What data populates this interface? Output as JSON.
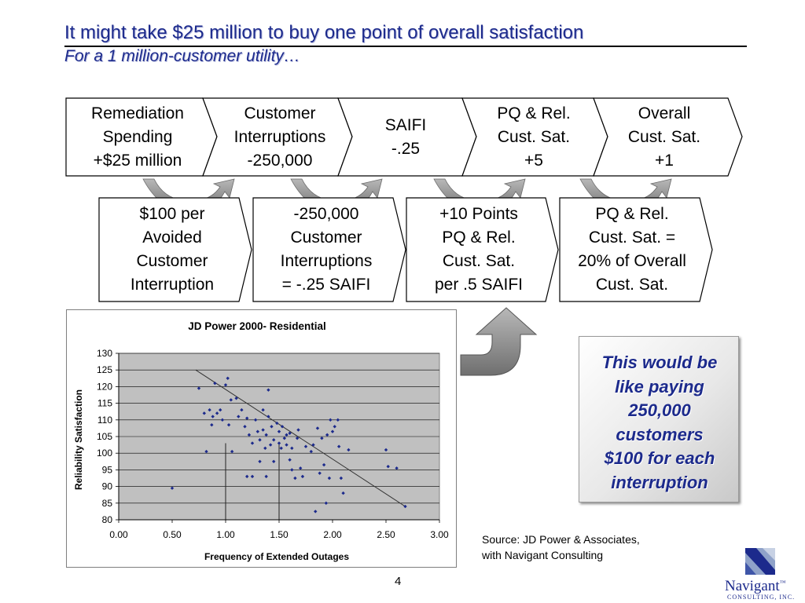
{
  "slide": {
    "title": "It might take $25 million to buy one point of overall satisfaction",
    "subtitle": "For a 1 million-customer utility…",
    "page_number": "4"
  },
  "chain": [
    {
      "lines": [
        "Remediation",
        "Spending",
        "+$25 million"
      ]
    },
    {
      "lines": [
        "Customer",
        "Interruptions",
        "-250,000"
      ]
    },
    {
      "lines": [
        "SAIFI",
        "-.25"
      ]
    },
    {
      "lines": [
        "PQ & Rel.",
        "Cust. Sat.",
        "+5"
      ]
    },
    {
      "lines": [
        "Overall",
        "Cust. Sat.",
        "+1"
      ]
    }
  ],
  "assumptions": [
    {
      "lines": [
        "$100 per",
        "Avoided",
        "Customer",
        "Interruption"
      ]
    },
    {
      "lines": [
        "-250,000",
        "Customer",
        "Interruptions",
        "= -.25 SAIFI"
      ]
    },
    {
      "lines": [
        "+10 Points",
        "PQ & Rel.",
        "Cust. Sat.",
        "per .5 SAIFI"
      ]
    },
    {
      "lines": [
        "PQ & Rel.",
        "Cust. Sat. =",
        "20% of Overall",
        "Cust. Sat."
      ]
    }
  ],
  "callout": {
    "lines": [
      "This would be",
      "like paying",
      "250,000",
      "customers",
      "$100 for each",
      "interruption"
    ]
  },
  "source": {
    "line1": "Source: JD Power & Associates,",
    "line2": "with Navigant Consulting"
  },
  "logo": {
    "name": "Navigant",
    "mark": "™",
    "tagline": "CONSULTING, INC."
  },
  "colors": {
    "title": "#1c2a8c",
    "point": "#1c2a8c",
    "plot_bg": "#c0c0c0",
    "arrow": "#8f8f8f"
  },
  "chart_data": {
    "type": "scatter",
    "title": "JD Power 2000-  Residential",
    "xlabel": "Frequency of Extended Outages",
    "ylabel": "Reliability Satisfaction",
    "xlim": [
      0,
      3
    ],
    "ylim": [
      80,
      130
    ],
    "x_ticks": [
      "0.00",
      "0.50",
      "1.00",
      "1.50",
      "2.00",
      "2.50",
      "3.00"
    ],
    "y_ticks": [
      "80",
      "85",
      "90",
      "95",
      "100",
      "105",
      "110",
      "115",
      "120",
      "125",
      "130"
    ],
    "grid": true,
    "series": [
      {
        "points": [
          [
            0.5,
            89.5
          ],
          [
            0.75,
            119.5
          ],
          [
            0.8,
            112
          ],
          [
            0.82,
            100.5
          ],
          [
            0.85,
            113
          ],
          [
            0.87,
            108.5
          ],
          [
            0.88,
            111
          ],
          [
            0.9,
            121
          ],
          [
            0.92,
            112
          ],
          [
            0.95,
            113
          ],
          [
            0.97,
            110
          ],
          [
            1.0,
            120.5
          ],
          [
            1.02,
            122.5
          ],
          [
            1.03,
            108.5
          ],
          [
            1.05,
            116
          ],
          [
            1.06,
            100.5
          ],
          [
            1.1,
            116.5
          ],
          [
            1.12,
            111
          ],
          [
            1.15,
            113
          ],
          [
            1.18,
            108
          ],
          [
            1.2,
            93
          ],
          [
            1.2,
            110.5
          ],
          [
            1.22,
            105.5
          ],
          [
            1.25,
            103
          ],
          [
            1.25,
            93
          ],
          [
            1.28,
            110
          ],
          [
            1.3,
            106.5
          ],
          [
            1.32,
            104
          ],
          [
            1.32,
            97.5
          ],
          [
            1.35,
            113
          ],
          [
            1.35,
            107
          ],
          [
            1.37,
            101.5
          ],
          [
            1.38,
            93
          ],
          [
            1.38,
            105.5
          ],
          [
            1.4,
            111
          ],
          [
            1.4,
            119
          ],
          [
            1.42,
            102.5
          ],
          [
            1.43,
            108
          ],
          [
            1.45,
            104
          ],
          [
            1.45,
            97.5
          ],
          [
            1.48,
            109
          ],
          [
            1.5,
            103
          ],
          [
            1.5,
            106.5
          ],
          [
            1.52,
            101.5
          ],
          [
            1.53,
            108
          ],
          [
            1.55,
            104.5
          ],
          [
            1.57,
            105.5
          ],
          [
            1.57,
            102.5
          ],
          [
            1.6,
            98
          ],
          [
            1.6,
            106
          ],
          [
            1.62,
            101.5
          ],
          [
            1.62,
            95
          ],
          [
            1.65,
            92.5
          ],
          [
            1.67,
            104.5
          ],
          [
            1.68,
            107
          ],
          [
            1.7,
            95.5
          ],
          [
            1.72,
            93
          ],
          [
            1.75,
            102
          ],
          [
            1.8,
            100.5
          ],
          [
            1.82,
            102.5
          ],
          [
            1.84,
            82.5
          ],
          [
            1.86,
            107.5
          ],
          [
            1.88,
            94
          ],
          [
            1.9,
            104.5
          ],
          [
            1.92,
            96.5
          ],
          [
            1.94,
            85
          ],
          [
            1.95,
            105.5
          ],
          [
            1.97,
            92.5
          ],
          [
            1.98,
            110
          ],
          [
            2.0,
            106.5
          ],
          [
            2.02,
            108
          ],
          [
            2.05,
            110
          ],
          [
            2.06,
            102
          ],
          [
            2.08,
            92.5
          ],
          [
            2.1,
            88
          ],
          [
            2.15,
            101
          ],
          [
            2.5,
            101
          ],
          [
            2.52,
            96
          ],
          [
            2.6,
            95.5
          ],
          [
            2.68,
            84
          ]
        ]
      }
    ],
    "trendline": [
      [
        0.72,
        125
      ],
      [
        2.68,
        84
      ]
    ],
    "reference_lines": [
      1.0,
      1.5
    ]
  }
}
